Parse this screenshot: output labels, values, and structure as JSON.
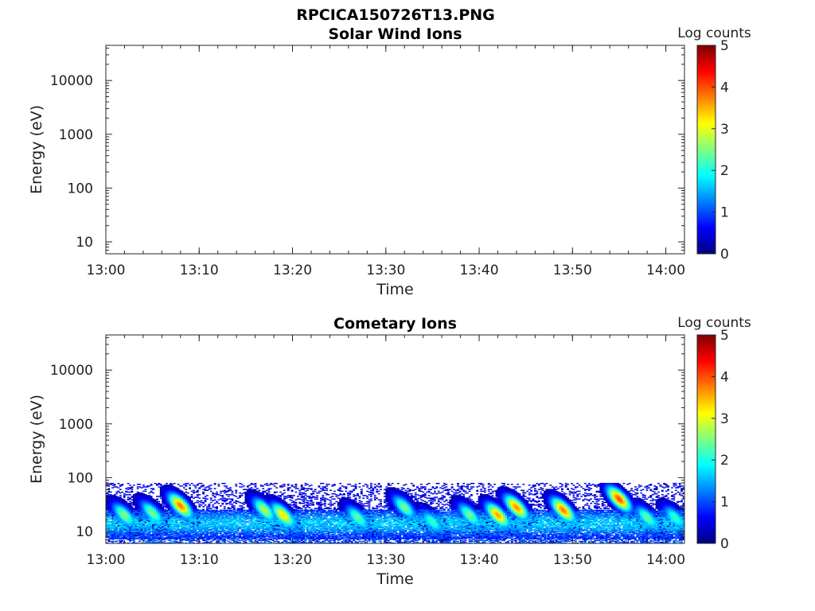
{
  "figure": {
    "title": "RPCICA150726T13.PNG"
  },
  "chart_data": [
    {
      "type": "heatmap",
      "title": "Solar Wind Ions",
      "xlabel": "Time",
      "ylabel": "Energy (eV)",
      "x_range": [
        "13:00",
        "14:02"
      ],
      "x_ticks": [
        "13:00",
        "13:10",
        "13:20",
        "13:30",
        "13:40",
        "13:50",
        "14:00"
      ],
      "y_scale": "log",
      "y_range": [
        6,
        45000
      ],
      "y_ticks": [
        "10",
        "100",
        "1000",
        "10000"
      ],
      "colorbar": {
        "label": "Log counts",
        "range": [
          0,
          5
        ],
        "ticks": [
          "0",
          "1",
          "2",
          "3",
          "4",
          "5"
        ],
        "colormap": "jet"
      },
      "bursts": []
    },
    {
      "type": "heatmap",
      "title": "Cometary Ions",
      "xlabel": "Time",
      "ylabel": "Energy (eV)",
      "x_range": [
        "13:00",
        "14:02"
      ],
      "x_ticks": [
        "13:00",
        "13:10",
        "13:20",
        "13:30",
        "13:40",
        "13:50",
        "14:00"
      ],
      "y_scale": "log",
      "y_range": [
        6,
        45000
      ],
      "y_ticks": [
        "10",
        "100",
        "1000",
        "10000"
      ],
      "colorbar": {
        "label": "Log counts",
        "range": [
          0,
          5
        ],
        "ticks": [
          "0",
          "1",
          "2",
          "3",
          "4",
          "5"
        ],
        "colormap": "jet"
      },
      "background": {
        "energy_range_eV": [
          6,
          80
        ],
        "dense_band_eV": [
          8,
          25
        ],
        "level": 1.2
      },
      "bursts": [
        {
          "time": "13:02",
          "peak_energy_eV": 20,
          "peak_log_counts": 2.6
        },
        {
          "time": "13:05",
          "peak_energy_eV": 22,
          "peak_log_counts": 2.5
        },
        {
          "time": "13:08",
          "peak_energy_eV": 30,
          "peak_log_counts": 3.8
        },
        {
          "time": "13:17",
          "peak_energy_eV": 25,
          "peak_log_counts": 2.8
        },
        {
          "time": "13:19",
          "peak_energy_eV": 20,
          "peak_log_counts": 3.3
        },
        {
          "time": "13:27",
          "peak_energy_eV": 18,
          "peak_log_counts": 2.4
        },
        {
          "time": "13:32",
          "peak_energy_eV": 28,
          "peak_log_counts": 2.5
        },
        {
          "time": "13:35",
          "peak_energy_eV": 15,
          "peak_log_counts": 2.2
        },
        {
          "time": "13:39",
          "peak_energy_eV": 20,
          "peak_log_counts": 2.5
        },
        {
          "time": "13:42",
          "peak_energy_eV": 20,
          "peak_log_counts": 3.6
        },
        {
          "time": "13:44",
          "peak_energy_eV": 28,
          "peak_log_counts": 3.7
        },
        {
          "time": "13:49",
          "peak_energy_eV": 25,
          "peak_log_counts": 3.8
        },
        {
          "time": "13:55",
          "peak_energy_eV": 40,
          "peak_log_counts": 4.0
        },
        {
          "time": "13:58",
          "peak_energy_eV": 18,
          "peak_log_counts": 2.4
        },
        {
          "time": "14:01",
          "peak_energy_eV": 18,
          "peak_log_counts": 2.2
        }
      ]
    }
  ]
}
